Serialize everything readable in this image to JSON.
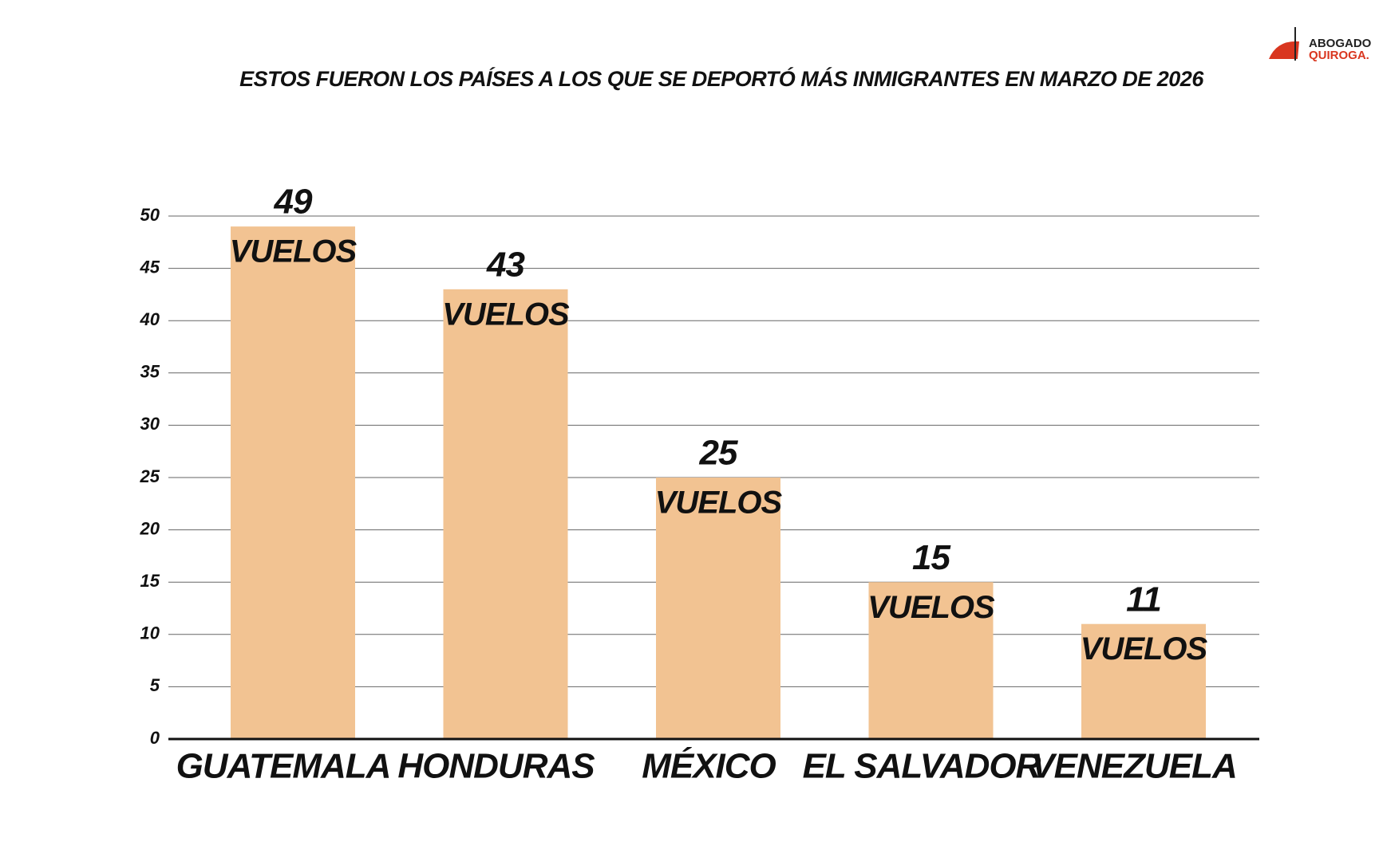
{
  "logo": [
    "ABOGADO",
    "QUIROGA."
  ],
  "chart_data": {
    "type": "bar",
    "title": "ESTOS FUERON LOS PAÍSES A LOS QUE SE DEPORTÓ MÁS INMIGRANTES EN MARZO DE 2026",
    "categories": [
      "GUATEMALA",
      "HONDURAS",
      "MÉXICO",
      "EL SALVADOR",
      "VENEZUELA"
    ],
    "values": [
      49,
      43,
      25,
      15,
      11
    ],
    "value_suffix": "VUELOS",
    "color": "#f2c392",
    "ylim": [
      0,
      50
    ],
    "yticks": [
      0,
      5,
      10,
      15,
      20,
      25,
      30,
      35,
      40,
      45,
      50
    ],
    "grid": true
  }
}
